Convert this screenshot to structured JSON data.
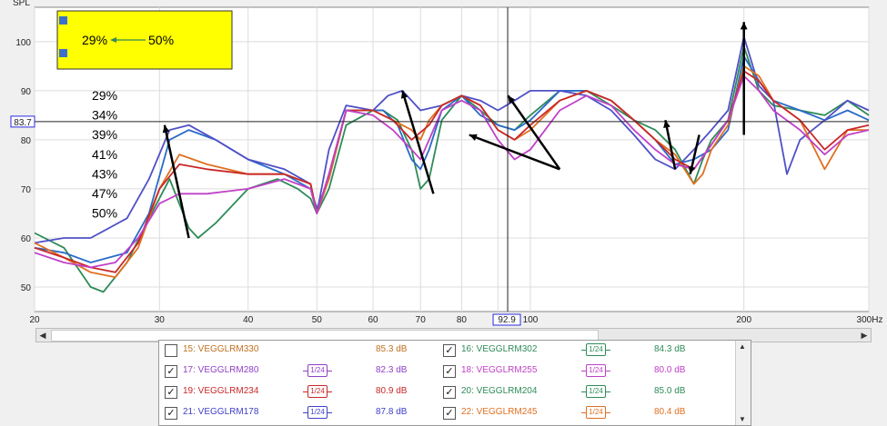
{
  "chart_data": {
    "type": "line",
    "title": "",
    "xlabel": "",
    "ylabel": "SPL",
    "x_scale": "log",
    "xlim": [
      20,
      300
    ],
    "ylim": [
      45,
      107
    ],
    "x_ticks": [
      20,
      30,
      40,
      50,
      60,
      70,
      80,
      100,
      200
    ],
    "x_tick_labels": [
      "20",
      "30",
      "40",
      "50",
      "60",
      "70",
      "80",
      "100",
      "200"
    ],
    "x_unit_label": "300Hz",
    "y_ticks": [
      50,
      60,
      70,
      80,
      90,
      100
    ],
    "grid": true,
    "cursor": {
      "x": 92.9,
      "y": 83.7,
      "x_label": "92.9",
      "y_label": "83.7"
    },
    "series": [
      {
        "color": "#2e8b57",
        "points": [
          [
            20,
            61
          ],
          [
            22,
            58
          ],
          [
            24,
            50
          ],
          [
            25,
            49
          ],
          [
            27,
            55
          ],
          [
            29,
            64
          ],
          [
            31,
            72
          ],
          [
            33,
            62
          ],
          [
            34,
            60
          ],
          [
            36,
            63
          ],
          [
            40,
            70
          ],
          [
            44,
            72
          ],
          [
            47,
            70
          ],
          [
            49,
            68
          ],
          [
            50,
            65
          ],
          [
            52,
            70
          ],
          [
            55,
            83
          ],
          [
            60,
            86
          ],
          [
            62,
            86
          ],
          [
            65,
            84
          ],
          [
            68,
            78
          ],
          [
            70,
            70
          ],
          [
            72,
            72
          ],
          [
            75,
            84
          ],
          [
            80,
            89
          ],
          [
            85,
            86
          ],
          [
            90,
            83
          ],
          [
            95,
            82
          ],
          [
            100,
            85
          ],
          [
            110,
            90
          ],
          [
            120,
            90
          ],
          [
            130,
            87
          ],
          [
            140,
            84
          ],
          [
            150,
            82
          ],
          [
            160,
            78
          ],
          [
            170,
            71
          ],
          [
            175,
            76
          ],
          [
            180,
            80
          ],
          [
            190,
            84
          ],
          [
            200,
            99
          ],
          [
            210,
            90
          ],
          [
            220,
            87
          ],
          [
            240,
            86
          ],
          [
            260,
            85
          ],
          [
            280,
            88
          ],
          [
            300,
            85
          ]
        ]
      },
      {
        "color": "#2a6bc8",
        "points": [
          [
            20,
            58
          ],
          [
            22,
            57
          ],
          [
            24,
            55
          ],
          [
            27,
            57
          ],
          [
            29,
            65
          ],
          [
            31,
            80
          ],
          [
            33,
            82
          ],
          [
            36,
            80
          ],
          [
            40,
            76
          ],
          [
            45,
            73
          ],
          [
            49,
            70
          ],
          [
            50,
            66
          ],
          [
            52,
            72
          ],
          [
            55,
            86
          ],
          [
            60,
            86
          ],
          [
            62,
            86
          ],
          [
            65,
            83
          ],
          [
            68,
            76
          ],
          [
            70,
            74
          ],
          [
            72,
            78
          ],
          [
            75,
            86
          ],
          [
            80,
            89
          ],
          [
            85,
            85
          ],
          [
            90,
            83
          ],
          [
            95,
            82
          ],
          [
            100,
            84
          ],
          [
            110,
            90
          ],
          [
            120,
            90
          ],
          [
            130,
            88
          ],
          [
            140,
            84
          ],
          [
            150,
            80
          ],
          [
            160,
            75
          ],
          [
            170,
            76
          ],
          [
            180,
            78
          ],
          [
            190,
            82
          ],
          [
            200,
            97
          ],
          [
            210,
            92
          ],
          [
            220,
            88
          ],
          [
            240,
            86
          ],
          [
            260,
            84
          ],
          [
            280,
            86
          ],
          [
            300,
            84
          ]
        ]
      },
      {
        "color": "#5050c8",
        "points": [
          [
            20,
            59
          ],
          [
            22,
            60
          ],
          [
            24,
            60
          ],
          [
            27,
            64
          ],
          [
            29,
            72
          ],
          [
            31,
            82
          ],
          [
            33,
            83
          ],
          [
            36,
            80
          ],
          [
            40,
            76
          ],
          [
            45,
            74
          ],
          [
            49,
            71
          ],
          [
            50,
            65
          ],
          [
            52,
            78
          ],
          [
            55,
            87
          ],
          [
            60,
            86
          ],
          [
            63,
            89
          ],
          [
            66,
            90
          ],
          [
            68,
            88
          ],
          [
            70,
            86
          ],
          [
            75,
            87
          ],
          [
            80,
            89
          ],
          [
            85,
            88
          ],
          [
            90,
            86
          ],
          [
            95,
            88
          ],
          [
            100,
            90
          ],
          [
            110,
            90
          ],
          [
            120,
            89
          ],
          [
            130,
            86
          ],
          [
            140,
            81
          ],
          [
            150,
            76
          ],
          [
            160,
            74
          ],
          [
            170,
            78
          ],
          [
            180,
            82
          ],
          [
            190,
            86
          ],
          [
            200,
            101
          ],
          [
            210,
            91
          ],
          [
            220,
            88
          ],
          [
            230,
            73
          ],
          [
            240,
            80
          ],
          [
            260,
            84
          ],
          [
            280,
            88
          ],
          [
            300,
            86
          ]
        ]
      },
      {
        "color": "#e07020",
        "points": [
          [
            20,
            59
          ],
          [
            22,
            56
          ],
          [
            24,
            53
          ],
          [
            26,
            52
          ],
          [
            28,
            58
          ],
          [
            30,
            70
          ],
          [
            32,
            77
          ],
          [
            35,
            75
          ],
          [
            40,
            73
          ],
          [
            45,
            73
          ],
          [
            49,
            71
          ],
          [
            50,
            65
          ],
          [
            52,
            72
          ],
          [
            55,
            86
          ],
          [
            60,
            86
          ],
          [
            64,
            84
          ],
          [
            68,
            82
          ],
          [
            70,
            80
          ],
          [
            72,
            84
          ],
          [
            75,
            87
          ],
          [
            80,
            89
          ],
          [
            85,
            87
          ],
          [
            90,
            82
          ],
          [
            95,
            80
          ],
          [
            100,
            82
          ],
          [
            110,
            88
          ],
          [
            120,
            90
          ],
          [
            130,
            88
          ],
          [
            140,
            84
          ],
          [
            150,
            80
          ],
          [
            160,
            77
          ],
          [
            170,
            71
          ],
          [
            175,
            73
          ],
          [
            180,
            78
          ],
          [
            190,
            83
          ],
          [
            200,
            95
          ],
          [
            210,
            93
          ],
          [
            220,
            88
          ],
          [
            240,
            84
          ],
          [
            260,
            74
          ],
          [
            280,
            82
          ],
          [
            300,
            82
          ]
        ]
      },
      {
        "color": "#c82828",
        "points": [
          [
            20,
            58
          ],
          [
            22,
            56
          ],
          [
            24,
            54
          ],
          [
            26,
            53
          ],
          [
            28,
            59
          ],
          [
            30,
            70
          ],
          [
            32,
            75
          ],
          [
            35,
            74
          ],
          [
            40,
            73
          ],
          [
            45,
            73
          ],
          [
            49,
            71
          ],
          [
            50,
            65
          ],
          [
            52,
            73
          ],
          [
            55,
            86
          ],
          [
            60,
            86
          ],
          [
            64,
            84
          ],
          [
            68,
            80
          ],
          [
            72,
            83
          ],
          [
            75,
            87
          ],
          [
            80,
            89
          ],
          [
            85,
            87
          ],
          [
            90,
            82
          ],
          [
            95,
            80
          ],
          [
            100,
            83
          ],
          [
            110,
            88
          ],
          [
            120,
            90
          ],
          [
            130,
            88
          ],
          [
            140,
            84
          ],
          [
            150,
            80
          ],
          [
            160,
            76
          ],
          [
            170,
            74
          ],
          [
            180,
            79
          ],
          [
            190,
            84
          ],
          [
            200,
            94
          ],
          [
            210,
            92
          ],
          [
            220,
            88
          ],
          [
            240,
            84
          ],
          [
            260,
            78
          ],
          [
            280,
            82
          ],
          [
            300,
            83
          ]
        ]
      },
      {
        "color": "#c040c8",
        "points": [
          [
            20,
            57
          ],
          [
            22,
            55
          ],
          [
            24,
            54
          ],
          [
            26,
            55
          ],
          [
            28,
            60
          ],
          [
            30,
            67
          ],
          [
            32,
            69
          ],
          [
            35,
            69
          ],
          [
            40,
            70
          ],
          [
            45,
            72
          ],
          [
            49,
            70
          ],
          [
            50,
            65
          ],
          [
            52,
            73
          ],
          [
            55,
            86
          ],
          [
            60,
            85
          ],
          [
            64,
            82
          ],
          [
            68,
            78
          ],
          [
            70,
            76
          ],
          [
            72,
            80
          ],
          [
            75,
            86
          ],
          [
            80,
            88
          ],
          [
            85,
            86
          ],
          [
            90,
            80
          ],
          [
            95,
            76
          ],
          [
            100,
            78
          ],
          [
            110,
            86
          ],
          [
            120,
            89
          ],
          [
            130,
            87
          ],
          [
            140,
            82
          ],
          [
            150,
            78
          ],
          [
            160,
            75
          ],
          [
            170,
            74
          ],
          [
            180,
            79
          ],
          [
            190,
            84
          ],
          [
            200,
            93
          ],
          [
            210,
            90
          ],
          [
            220,
            86
          ],
          [
            240,
            82
          ],
          [
            260,
            77
          ],
          [
            280,
            81
          ],
          [
            300,
            82
          ]
        ]
      }
    ],
    "annotation_percent_labels": [
      "29%",
      "34%",
      "39%",
      "41%",
      "43%",
      "47%",
      "50%"
    ],
    "annotation_box_text": {
      "left": "29%",
      "right": "50%"
    },
    "arrows": [
      {
        "from": [
          33,
          60
        ],
        "to": [
          30.5,
          83
        ]
      },
      {
        "from": [
          73,
          69
        ],
        "to": [
          66,
          90
        ]
      },
      {
        "from": [
          110,
          74
        ],
        "to": [
          93,
          89
        ]
      },
      {
        "from": [
          110,
          74
        ],
        "to": [
          82,
          81
        ]
      },
      {
        "from": [
          160,
          74
        ],
        "to": [
          155,
          84
        ]
      },
      {
        "from": [
          173,
          81
        ],
        "to": [
          168,
          73
        ]
      },
      {
        "from": [
          200,
          81
        ],
        "to": [
          200,
          104
        ]
      }
    ],
    "colors": {
      "yellow_box": "#ffff00",
      "plot_bg": "#ffffff",
      "grid": "#dcdcdc",
      "cursor": "#222222",
      "axis_label": "#2a2ae0"
    }
  },
  "legend": {
    "rows": [
      {
        "left": {
          "checked": false,
          "name": "15: VEGGLRM330",
          "value": "85.3 dB",
          "color": "#c07020",
          "smoothing": ""
        },
        "right": {
          "checked": true,
          "name": "16: VEGGLRM302",
          "value": "84.3 dB",
          "color": "#2e8b57",
          "smoothing": "1/24"
        }
      },
      {
        "left": {
          "checked": true,
          "name": "17: VEGGLRM280",
          "value": "82.3 dB",
          "color": "#9040c8",
          "smoothing": "1/24"
        },
        "right": {
          "checked": true,
          "name": "18: VEGGLRM255",
          "value": "80.0 dB",
          "color": "#c040c8",
          "smoothing": "1/24"
        }
      },
      {
        "left": {
          "checked": true,
          "name": "19: VEGGLRM234",
          "value": "80.9 dB",
          "color": "#c82828",
          "smoothing": "1/24"
        },
        "right": {
          "checked": true,
          "name": "20: VEGGLRM204",
          "value": "85.0 dB",
          "color": "#2e8b57",
          "smoothing": "1/24"
        }
      },
      {
        "left": {
          "checked": true,
          "name": "21: VEGGLRM178",
          "value": "87.8 dB",
          "color": "#4040c8",
          "smoothing": "1/24"
        },
        "right": {
          "checked": true,
          "name": "22: VEGGLRM245",
          "value": "80.4 dB",
          "color": "#e07020",
          "smoothing": "1/24"
        }
      }
    ]
  }
}
